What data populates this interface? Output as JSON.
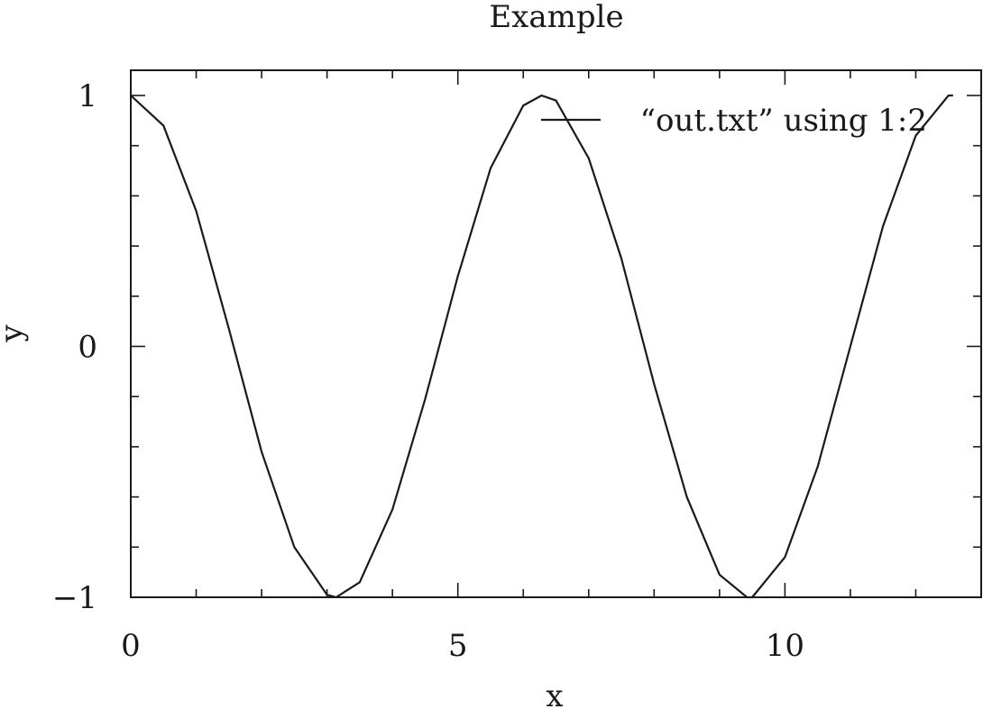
{
  "chart_data": {
    "type": "line",
    "title": "Example",
    "xlabel": "x",
    "ylabel": "y",
    "xlim": [
      0,
      13
    ],
    "ylim": [
      -1,
      1
    ],
    "x_ticks": [
      {
        "value": 0,
        "label": "0"
      },
      {
        "value": 5,
        "label": "5"
      },
      {
        "value": 10,
        "label": "10"
      }
    ],
    "y_ticks": [
      {
        "value": -1,
        "label": "−1"
      },
      {
        "value": 0,
        "label": "0"
      },
      {
        "value": 1,
        "label": "1"
      }
    ],
    "x_minor_step": 1,
    "y_minor_step": 0.2,
    "grid": false,
    "legend_position": "top-right",
    "series": [
      {
        "name": "“out.txt” using 1:2",
        "color": "#1a1a1a",
        "x": [
          0,
          0.5,
          1,
          1.5,
          2,
          2.5,
          3,
          3.14,
          3.5,
          4,
          4.5,
          5,
          5.5,
          6,
          6.28,
          6.5,
          7,
          7.5,
          8,
          8.5,
          9,
          9.42,
          9.5,
          10,
          10.5,
          11,
          11.5,
          12,
          12.5,
          12.57
        ],
        "y": [
          1,
          0.88,
          0.54,
          0.07,
          -0.42,
          -0.8,
          -0.99,
          -1,
          -0.94,
          -0.65,
          -0.21,
          0.28,
          0.71,
          0.96,
          1,
          0.98,
          0.75,
          0.35,
          -0.15,
          -0.6,
          -0.91,
          -1,
          -1,
          -0.84,
          -0.48,
          0,
          0.48,
          0.84,
          1,
          1
        ]
      }
    ]
  }
}
